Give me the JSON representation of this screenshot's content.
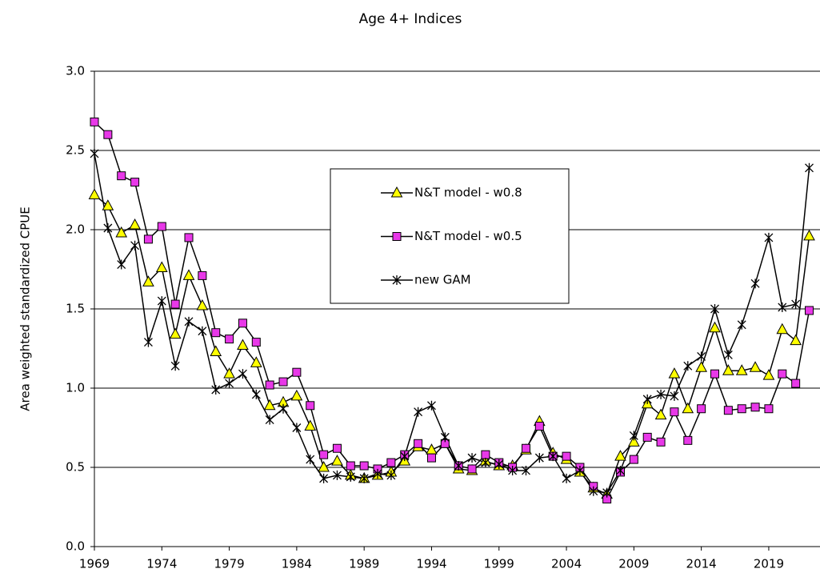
{
  "chart_data": {
    "type": "line",
    "title": "Age 4+ Indices",
    "y_label": "Area weighted standardized CPUE",
    "x": [
      1969,
      1970,
      1971,
      1972,
      1973,
      1974,
      1975,
      1976,
      1977,
      1978,
      1979,
      1980,
      1981,
      1982,
      1983,
      1984,
      1985,
      1986,
      1987,
      1988,
      1989,
      1990,
      1991,
      1992,
      1993,
      1994,
      1995,
      1996,
      1997,
      1998,
      1999,
      2000,
      2001,
      2002,
      2003,
      2004,
      2005,
      2006,
      2007,
      2008,
      2009,
      2010,
      2011,
      2012,
      2013,
      2014,
      2015,
      2016,
      2017,
      2018,
      2019,
      2020,
      2021,
      2022
    ],
    "series": [
      {
        "name": "N&T model - w0.8",
        "color": "#ffff00",
        "marker": "triangle",
        "values": [
          2.22,
          2.15,
          1.98,
          2.03,
          1.67,
          1.76,
          1.34,
          1.71,
          1.52,
          1.23,
          1.09,
          1.27,
          1.16,
          0.89,
          0.91,
          0.95,
          0.76,
          0.5,
          0.54,
          0.45,
          0.43,
          0.45,
          0.47,
          0.54,
          0.63,
          0.61,
          0.65,
          0.49,
          0.48,
          0.54,
          0.51,
          0.51,
          0.61,
          0.79,
          0.59,
          0.55,
          0.47,
          0.37,
          0.33,
          0.57,
          0.66,
          0.9,
          0.83,
          1.09,
          0.87,
          1.13,
          1.38,
          1.11,
          1.11,
          1.13,
          1.08,
          1.37,
          1.3,
          1.96
        ]
      },
      {
        "name": "N&T model - w0.5",
        "color": "#e838e8",
        "marker": "square",
        "values": [
          2.68,
          2.6,
          2.34,
          2.3,
          1.94,
          2.02,
          1.53,
          1.95,
          1.71,
          1.35,
          1.31,
          1.41,
          1.29,
          1.02,
          1.04,
          1.1,
          0.89,
          0.58,
          0.62,
          0.51,
          0.51,
          0.49,
          0.53,
          0.58,
          0.65,
          0.56,
          0.65,
          0.51,
          0.49,
          0.58,
          0.53,
          0.5,
          0.62,
          0.76,
          0.57,
          0.57,
          0.5,
          0.38,
          0.3,
          0.47,
          0.55,
          0.69,
          0.66,
          0.85,
          0.67,
          0.87,
          1.09,
          0.86,
          0.87,
          0.88,
          0.87,
          1.09,
          1.03,
          1.49
        ]
      },
      {
        "name": "new GAM",
        "color": "#000000",
        "marker": "asterisk",
        "values": [
          2.48,
          2.01,
          1.78,
          1.9,
          1.29,
          1.55,
          1.14,
          1.42,
          1.36,
          0.99,
          1.03,
          1.09,
          0.96,
          0.8,
          0.87,
          0.75,
          0.55,
          0.43,
          0.45,
          0.44,
          0.43,
          0.46,
          0.45,
          0.57,
          0.85,
          0.89,
          0.69,
          0.51,
          0.56,
          0.53,
          0.52,
          0.48,
          0.48,
          0.56,
          0.57,
          0.43,
          0.48,
          0.35,
          0.34,
          0.48,
          0.7,
          0.93,
          0.96,
          0.95,
          1.14,
          1.2,
          1.5,
          1.21,
          1.4,
          1.66,
          1.95,
          1.51,
          1.53,
          2.39
        ]
      }
    ],
    "line_color": "#000000",
    "xlim": [
      1969,
      2022.8
    ],
    "xticks": [
      1969,
      1974,
      1979,
      1984,
      1989,
      1994,
      1999,
      2004,
      2009,
      2014,
      2019
    ],
    "ylim": [
      0,
      3
    ],
    "yticks": [
      {
        "value": 0,
        "label": "0.0"
      },
      0.5,
      {
        "value": 1,
        "label": "1.0"
      },
      1.5,
      {
        "value": 2,
        "label": "2.0"
      },
      2.5,
      {
        "value": 3,
        "label": "3.0"
      }
    ],
    "grid": true
  }
}
